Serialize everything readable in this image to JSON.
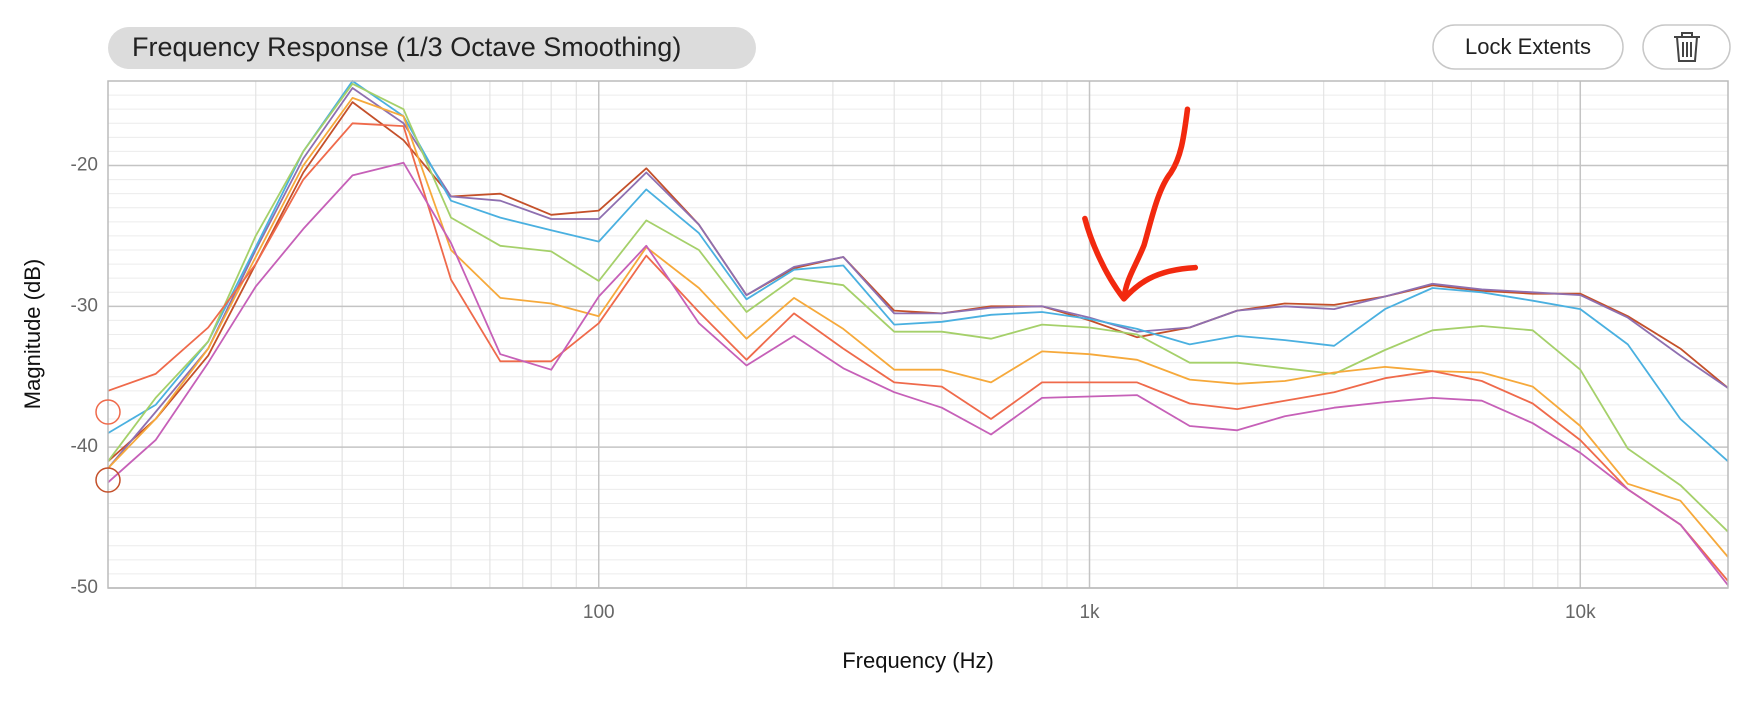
{
  "chart_data": {
    "type": "line",
    "title": "Frequency Response",
    "subtitle": "(1/3 Octave Smoothing)",
    "buttons": [
      "Lock Extents"
    ],
    "x_label": "Frequency (Hz)",
    "y_label": "Magnitude (dB)",
    "log_x": true,
    "grid": true,
    "xlim": [
      10,
      20000
    ],
    "ylim": [
      -50,
      -14
    ],
    "xticks": [
      100,
      {
        "value": 1000,
        "label": "1k"
      },
      {
        "value": 10000,
        "label": "10k"
      }
    ],
    "xminor_ticks": [
      20,
      30,
      40,
      50,
      60,
      70,
      80,
      90,
      200,
      300,
      400,
      500,
      600,
      700,
      800,
      900,
      2000,
      3000,
      4000,
      5000,
      6000,
      7000,
      8000,
      9000
    ],
    "yticks": [
      -20,
      -30,
      -40,
      -50
    ],
    "yminor_ticks": [
      -49,
      -48,
      -47,
      -46,
      -45,
      -44,
      -43,
      -42,
      -41,
      -39,
      -38,
      -37,
      -36,
      -35,
      -34,
      -33,
      -32,
      -31,
      -29,
      -28,
      -27,
      -26,
      -25,
      -24,
      -23,
      -22,
      -21,
      -19,
      -18,
      -17,
      -16,
      -15
    ],
    "x": [
      10,
      12.5,
      16,
      20,
      25,
      31.5,
      40,
      50,
      63,
      80,
      100,
      125,
      160,
      200,
      250,
      315,
      400,
      500,
      630,
      800,
      1000,
      1250,
      1600,
      2000,
      2500,
      3150,
      4000,
      5000,
      6300,
      8000,
      10000,
      12500,
      16000,
      20000
    ],
    "series": [
      {
        "color": "#c4502a",
        "values": [
          -41,
          -38,
          -33.5,
          -27,
          -20.5,
          -15.5,
          -18.2,
          -22.2,
          -22,
          -23.5,
          -23.2,
          -20.2,
          -24.2,
          -29.2,
          -27.3,
          -26.5,
          -30.3,
          -30.5,
          -30,
          -30,
          -31,
          -32.2,
          -31.5,
          -30.3,
          -29.8,
          -29.9,
          -29.3,
          -28.5,
          -28.9,
          -29.1,
          -29.1,
          -30.7,
          -33,
          -35.8
        ]
      },
      {
        "color": "#8e6fb0",
        "values": [
          -41.5,
          -37.5,
          -33,
          -26,
          -19.5,
          -14.5,
          -17,
          -22.2,
          -22.5,
          -23.8,
          -23.8,
          -20.5,
          -24.2,
          -29.2,
          -27.2,
          -26.5,
          -30.5,
          -30.5,
          -30.1,
          -30,
          -30.8,
          -31.8,
          -31.5,
          -30.3,
          -30,
          -30.2,
          -29.3,
          -28.4,
          -28.8,
          -29,
          -29.2,
          -30.8,
          -33.5,
          -35.8
        ]
      },
      {
        "color": "#4ab0e0",
        "values": [
          -39,
          -37,
          -32.5,
          -25.8,
          -19,
          -14,
          -16.5,
          -22.5,
          -23.7,
          -24.6,
          -25.4,
          -21.7,
          -24.8,
          -29.5,
          -27.4,
          -27.1,
          -31.3,
          -31.1,
          -30.6,
          -30.4,
          -30.9,
          -31.6,
          -32.7,
          -32.1,
          -32.4,
          -32.8,
          -30.2,
          -28.7,
          -29,
          -29.6,
          -30.2,
          -32.7,
          -38,
          -41
        ]
      },
      {
        "color": "#a5d06a",
        "values": [
          -41,
          -36.5,
          -32.5,
          -25,
          -19,
          -14.2,
          -16,
          -23.7,
          -25.7,
          -26.1,
          -28.2,
          -23.9,
          -26,
          -30.4,
          -28,
          -28.5,
          -31.8,
          -31.8,
          -32.3,
          -31.3,
          -31.5,
          -32,
          -34,
          -34,
          -34.4,
          -34.8,
          -33.1,
          -31.7,
          -31.4,
          -31.7,
          -34.5,
          -40.1,
          -42.7,
          -46
        ]
      },
      {
        "color": "#f6a93b",
        "values": [
          -41.5,
          -38,
          -33,
          -26.5,
          -20,
          -15.2,
          -16.5,
          -26,
          -29.4,
          -29.8,
          -30.7,
          -25.8,
          -28.7,
          -32.3,
          -29.4,
          -31.6,
          -34.5,
          -34.5,
          -35.4,
          -33.2,
          -33.4,
          -33.8,
          -35.2,
          -35.5,
          -35.3,
          -34.7,
          -34.3,
          -34.6,
          -34.7,
          -35.7,
          -38.5,
          -42.6,
          -43.8,
          -47.8
        ]
      },
      {
        "color": "#ef6a4b",
        "values": [
          -36,
          -34.8,
          -31.5,
          -27,
          -21,
          -17,
          -17.2,
          -28.1,
          -33.9,
          -33.9,
          -31.2,
          -26.4,
          -30.4,
          -33.8,
          -30.5,
          -33,
          -35.4,
          -35.7,
          -38,
          -35.4,
          -35.4,
          -35.4,
          -36.9,
          -37.3,
          -36.7,
          -36.1,
          -35.1,
          -34.6,
          -35.3,
          -36.9,
          -39.5,
          -43,
          -45.5,
          -49.5
        ]
      },
      {
        "color": "#c660b8",
        "values": [
          -42.5,
          -39.5,
          -34,
          -28.6,
          -24.5,
          -20.7,
          -19.8,
          -25.5,
          -33.4,
          -34.5,
          -29.3,
          -25.7,
          -31.2,
          -34.2,
          -32.1,
          -34.4,
          -36.1,
          -37.2,
          -39.1,
          -36.5,
          -36.4,
          -36.3,
          -38.5,
          -38.8,
          -37.8,
          -37.2,
          -36.8,
          -36.5,
          -36.7,
          -38.3,
          -40.4,
          -43,
          -45.5,
          -49.8
        ]
      }
    ]
  }
}
